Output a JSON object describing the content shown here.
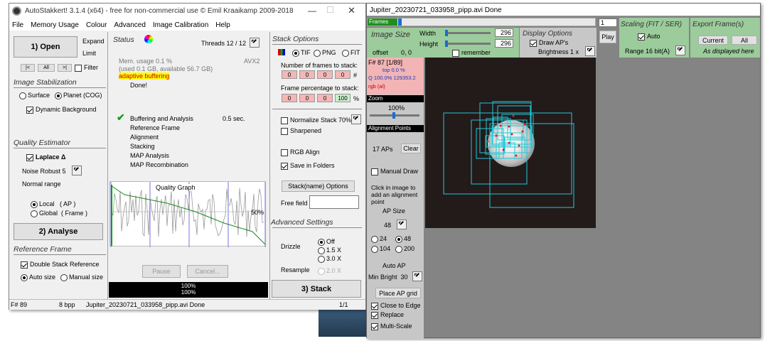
{
  "main_window": {
    "title": "AutoStakkert! 3.1.4 (x64) - free for non-commercial use © Emil Kraaikamp 2009-2018",
    "menu": [
      "File",
      "Memory Usage",
      "Colour",
      "Advanced",
      "Image Calibration",
      "Help"
    ],
    "open_button": "1) Open",
    "expand": "Expand",
    "limit": "Limit",
    "nav": [
      "|<",
      "All",
      ">|"
    ],
    "filter": "Filter",
    "image_stabilization": "Image Stabilization",
    "surface": "Surface",
    "planet": "Planet (COG)",
    "dynamic_bg": "Dynamic Background",
    "quality_estimator": "Quality Estimator",
    "laplace": "Laplace Δ",
    "noise_robust": "Noise Robust",
    "noise_value": "5",
    "normal_range": "Normal range",
    "local": "Local",
    "local_ap": "( AP )",
    "global": "Global",
    "global_frame": "( Frame )",
    "analyse_button": "2) Analyse",
    "reference_frame": "Reference Frame",
    "double_stack": "Double Stack Reference",
    "auto_size": "Auto size",
    "manual_size": "Manual size",
    "status": "Status",
    "threads": "Threads 12 / 12",
    "mem_usage": "Mem. usage 0.1 %",
    "avx": "AVX2",
    "mem_used": "(used 0.1 GB, available 56.7 GB)",
    "adaptive": "adaptive buffering",
    "done": "Done!",
    "steps": [
      "Buffering and Analysis",
      "Reference Frame",
      "Alignment",
      "Stacking",
      "MAP Analysis",
      "MAP Recombination"
    ],
    "buffer_time": "0.5 sec.",
    "quality_graph": "Quality Graph",
    "graph_pct": "50%",
    "pause": "Pause",
    "cancel": "Cancel...",
    "progress1": "100%",
    "progress2": "100%",
    "stack_options": "Stack Options",
    "tif": "TIF",
    "png": "PNG",
    "fit": "FIT",
    "num_frames": "Number of frames to stack:",
    "num_values": [
      "0",
      "0",
      "0",
      "0"
    ],
    "hash": "#",
    "frame_pct": "Frame percentage to stack:",
    "pct_values": [
      "0",
      "0",
      "0",
      "100"
    ],
    "pct_sign": "%",
    "normalize": "Normalize Stack 70%",
    "sharpened": "Sharpened",
    "rgb_align": "RGB Align",
    "save_folders": "Save in Folders",
    "stackname_button": "Stack(name) Options",
    "free_field": "Free field",
    "advanced_settings": "Advanced Settings",
    "drizzle": "Drizzle",
    "drizzle_opts": [
      "Off",
      "1.5 X",
      "3.0 X"
    ],
    "resample": "Resample",
    "resample_opt": "2.0 X",
    "stack_button": "3) Stack",
    "statusbar": {
      "frame": "F# 89",
      "bpp": "8 bpp",
      "file": "Jupiter_20230721_033958_pipp.avi  Done",
      "page": "1/1"
    }
  },
  "viewer_window": {
    "title": "Jupiter_20230721_033958_pipp.avi  Done",
    "frames_label": "Frames",
    "frame_number": "1",
    "image_size": "Image Size",
    "width_label": "Width",
    "width_val": "296",
    "height_label": "Height",
    "height_val": "296",
    "offset": "offset",
    "offset_val": "0, 0",
    "remember": "remember",
    "display_options": "Display Options",
    "draw_aps": "Draw AP's",
    "brightness": "Brightness 1 x",
    "play": "Play",
    "scaling": "Scaling (FIT / SER)",
    "auto": "Auto",
    "range": "Range 16 bit(A)",
    "export": "Export Frame(s)",
    "current": "Current",
    "all": "All",
    "as_displayed": "As displayed here",
    "frame_info": "F# 87 [1/89]",
    "top_pct": "top 0.0 %",
    "q_info": "Q 100.0%  129353.2",
    "rgb": "rgb (al)",
    "zoom": "Zoom",
    "zoom_val": "100%",
    "alignment_points": "Alignment Points",
    "aps_count": "17 APs",
    "clear": "Clear",
    "manual_draw": "Manual Draw",
    "click_help": "Click in image to add an alignment point",
    "ap_size": "AP Size",
    "ap_size_val": "48",
    "ap_opts": [
      "24",
      "48",
      "104",
      "200"
    ],
    "auto_ap": "Auto AP",
    "min_bright": "Min Bright",
    "min_bright_val": "30",
    "place_ap_grid": "Place AP grid",
    "close_edge": "Close to Edge",
    "replace": "Replace",
    "multi_scale": "Multi-Scale"
  },
  "colors": {
    "accent_green": "#00b000",
    "panel": "#c7c7c7",
    "viewer_bg": "#848484"
  }
}
